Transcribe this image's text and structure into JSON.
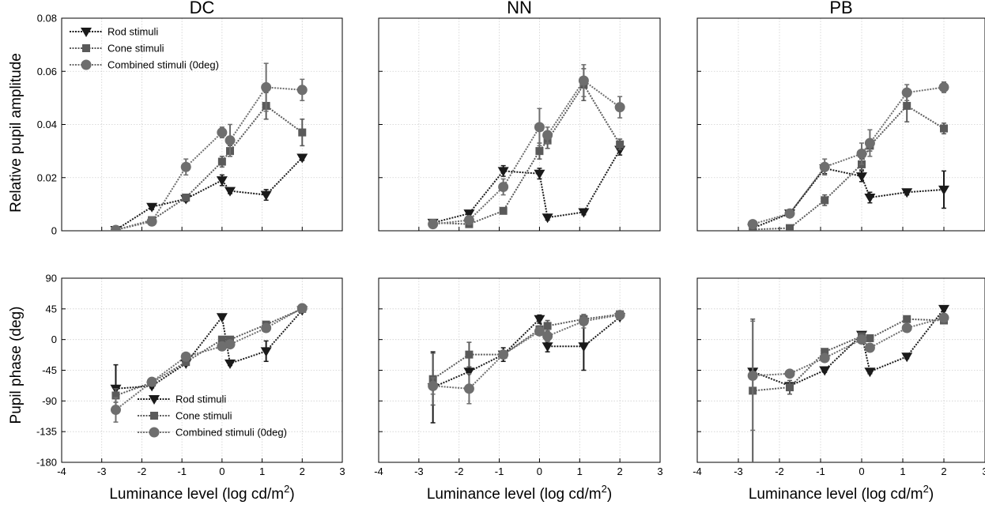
{
  "figure": {
    "ylabel_top": "Relative pupil amplitude",
    "ylabel_bottom": "Pupil phase (deg)",
    "xlabel_main": "Luminance level (log cd/m",
    "xlabel_sup": "2",
    "xlabel_end": ")"
  },
  "legend_labels": [
    "Rod stimuli",
    "Cone stimuli",
    "Combined stimuli (0deg)"
  ],
  "colors": {
    "rod": "#1a1a1a",
    "cone": "#5a5a5a",
    "comb": "#6e6e6e",
    "grid": "#cfcfcf"
  },
  "chart_data": [
    {
      "type": "line",
      "title": "DC",
      "metric": "amplitude",
      "xlim": [
        -4,
        3
      ],
      "ylim": [
        0,
        0.08
      ],
      "xticks": [
        -4,
        -3,
        -2,
        -1,
        0,
        1,
        2,
        3
      ],
      "yticks": [
        0,
        0.02,
        0.04,
        0.06,
        0.08
      ],
      "ytick_labels": [
        "0",
        "0.02",
        "0.04",
        "0.06",
        "0.08"
      ],
      "legend": "top-left",
      "grid": true,
      "series": [
        {
          "name": "Rod stimuli",
          "marker": "triangle-down",
          "x": [
            -2.65,
            -1.75,
            -0.9,
            0,
            0.2,
            1.1,
            2
          ],
          "y": [
            0.0003,
            0.009,
            0.012,
            0.019,
            0.015,
            0.0135,
            0.0275
          ],
          "err": [
            0.0005,
            0.001,
            0.001,
            0.002,
            0.001,
            0.002,
            0.001
          ]
        },
        {
          "name": "Cone stimuli",
          "marker": "square",
          "x": [
            -2.65,
            -1.75,
            -0.9,
            0,
            0.2,
            1.1,
            2
          ],
          "y": [
            0.0003,
            0.004,
            0.0125,
            0.026,
            0.03,
            0.047,
            0.037
          ],
          "err": [
            0.0005,
            0.001,
            0.001,
            0.002,
            0.002,
            0.005,
            0.005
          ]
        },
        {
          "name": "Combined stimuli (0deg)",
          "marker": "circle",
          "x": [
            -2.65,
            -1.75,
            -0.9,
            0,
            0.2,
            1.1,
            2
          ],
          "y": [
            0.0003,
            0.0035,
            0.024,
            0.037,
            0.034,
            0.054,
            0.053
          ],
          "err": [
            0.0005,
            0.001,
            0.003,
            0.002,
            0.006,
            0.009,
            0.004
          ]
        }
      ]
    },
    {
      "type": "line",
      "title": "NN",
      "metric": "amplitude",
      "xlim": [
        -4,
        3
      ],
      "ylim": [
        0,
        0.08
      ],
      "xticks": [
        -4,
        -3,
        -2,
        -1,
        0,
        1,
        2,
        3
      ],
      "grid": true,
      "series": [
        {
          "name": "Rod stimuli",
          "marker": "triangle-down",
          "x": [
            -2.65,
            -1.75,
            -0.9,
            0,
            0.2,
            1.1,
            2
          ],
          "y": [
            0.003,
            0.0065,
            0.0225,
            0.0215,
            0.005,
            0.007,
            0.0305
          ],
          "err": [
            0.001,
            0.001,
            0.002,
            0.002,
            0.001,
            0.001,
            0.002
          ]
        },
        {
          "name": "Cone stimuli",
          "marker": "square",
          "x": [
            -2.65,
            -1.75,
            -0.9,
            0,
            0.2,
            1.1,
            2
          ],
          "y": [
            0.003,
            0.0025,
            0.0075,
            0.03,
            0.034,
            0.055,
            0.0325
          ],
          "err": [
            0.001,
            0.001,
            0.001,
            0.003,
            0.003,
            0.006,
            0.002
          ]
        },
        {
          "name": "Combined stimuli (0deg)",
          "marker": "circle",
          "x": [
            -2.65,
            -1.75,
            -0.9,
            0,
            0.2,
            1.1,
            2
          ],
          "y": [
            0.0025,
            0.004,
            0.0165,
            0.039,
            0.036,
            0.0565,
            0.0465
          ],
          "err": [
            0.001,
            0.001,
            0.003,
            0.007,
            0.003,
            0.006,
            0.004
          ]
        }
      ]
    },
    {
      "type": "line",
      "title": "PB",
      "metric": "amplitude",
      "xlim": [
        -4,
        3
      ],
      "ylim": [
        0,
        0.08
      ],
      "xticks": [
        -4,
        -3,
        -2,
        -1,
        0,
        1,
        2,
        3
      ],
      "grid": true,
      "series": [
        {
          "name": "Rod stimuli",
          "marker": "triangle-down",
          "x": [
            -2.65,
            -1.75,
            -0.9,
            0,
            0.2,
            1.1,
            2
          ],
          "y": [
            0.001,
            0.0065,
            0.0235,
            0.0205,
            0.0125,
            0.0145,
            0.0155
          ],
          "err": [
            0.0005,
            0.001,
            0.002,
            0.002,
            0.002,
            0.001,
            0.007
          ]
        },
        {
          "name": "Cone stimuli",
          "marker": "square",
          "x": [
            -2.65,
            -1.75,
            -0.9,
            0,
            0.2,
            1.1,
            2
          ],
          "y": [
            0.0005,
            0.001,
            0.0115,
            0.025,
            0.032,
            0.047,
            0.0385
          ],
          "err": [
            0.0005,
            0.0005,
            0.002,
            0.002,
            0.002,
            0.006,
            0.002
          ]
        },
        {
          "name": "Combined stimuli (0deg)",
          "marker": "circle",
          "x": [
            -2.65,
            -1.75,
            -0.9,
            0,
            0.2,
            1.1,
            2
          ],
          "y": [
            0.0025,
            0.0065,
            0.024,
            0.029,
            0.033,
            0.052,
            0.054
          ],
          "err": [
            0.001,
            0.001,
            0.003,
            0.004,
            0.005,
            0.003,
            0.002
          ]
        }
      ]
    },
    {
      "type": "line",
      "title": "",
      "metric": "phase",
      "xlim": [
        -4,
        3
      ],
      "ylim": [
        -180,
        90
      ],
      "xticks": [
        -4,
        -3,
        -2,
        -1,
        0,
        1,
        2,
        3
      ],
      "yticks": [
        -180,
        -135,
        -90,
        -45,
        0,
        45,
        90
      ],
      "ytick_labels": [
        "-180",
        "-135",
        "-90",
        "-45",
        "0",
        "45",
        "90"
      ],
      "legend": "bottom-left",
      "grid": true,
      "series": [
        {
          "name": "Rod stimuli",
          "marker": "triangle-down",
          "x": [
            -2.65,
            -1.75,
            -0.9,
            0,
            0.2,
            1.1,
            2
          ],
          "y": [
            -72,
            -68,
            -35,
            33,
            -35,
            -17,
            43
          ],
          "err": [
            35,
            3,
            3,
            3,
            3,
            15,
            3
          ]
        },
        {
          "name": "Cone stimuli",
          "marker": "square",
          "x": [
            -2.65,
            -1.75,
            -0.9,
            0,
            0.2,
            1.1,
            2
          ],
          "y": [
            -82,
            -63,
            -33,
            0,
            0,
            22,
            45
          ],
          "err": [
            10,
            3,
            3,
            4,
            4,
            3,
            3
          ]
        },
        {
          "name": "Combined stimuli (0deg)",
          "marker": "circle",
          "x": [
            -2.65,
            -1.75,
            -0.9,
            0,
            0.2,
            1.1,
            2
          ],
          "y": [
            -103,
            -62,
            -25,
            -10,
            -7,
            17,
            46
          ],
          "err": [
            18,
            3,
            3,
            3,
            3,
            3,
            3
          ]
        }
      ]
    },
    {
      "type": "line",
      "title": "",
      "metric": "phase",
      "xlim": [
        -4,
        3
      ],
      "ylim": [
        -180,
        90
      ],
      "xticks": [
        -4,
        -3,
        -2,
        -1,
        0,
        1,
        2,
        3
      ],
      "grid": true,
      "series": [
        {
          "name": "Rod stimuli",
          "marker": "triangle-down",
          "x": [
            -2.65,
            -1.75,
            -0.9,
            0,
            0.2,
            1.1,
            2
          ],
          "y": [
            -70,
            -47,
            -22,
            30,
            -10,
            -10,
            33
          ],
          "err": [
            52,
            22,
            10,
            6,
            8,
            35,
            3
          ]
        },
        {
          "name": "Cone stimuli",
          "marker": "square",
          "x": [
            -2.65,
            -1.75,
            -0.9,
            0,
            0.2,
            1.1,
            2
          ],
          "y": [
            -58,
            -22,
            -22,
            15,
            20,
            30,
            37
          ],
          "err": [
            38,
            18,
            4,
            5,
            8,
            5,
            3
          ]
        },
        {
          "name": "Combined stimuli (0deg)",
          "marker": "circle",
          "x": [
            -2.65,
            -1.75,
            -0.9,
            0,
            0.2,
            1.1,
            2
          ],
          "y": [
            -68,
            -72,
            -22,
            12,
            5,
            27,
            36
          ],
          "err": [
            12,
            22,
            4,
            5,
            8,
            10,
            3
          ]
        }
      ]
    },
    {
      "type": "line",
      "title": "",
      "metric": "phase",
      "xlim": [
        -4,
        3
      ],
      "ylim": [
        -180,
        90
      ],
      "xticks": [
        -4,
        -3,
        -2,
        -1,
        0,
        1,
        2,
        3
      ],
      "grid": true,
      "series": [
        {
          "name": "Rod stimuli",
          "marker": "triangle-down",
          "x": [
            -2.65,
            -1.75,
            -0.9,
            0,
            0.2,
            1.1,
            2
          ],
          "y": [
            -47,
            -68,
            -45,
            7,
            -47,
            -25,
            45
          ],
          "err": [
            3,
            3,
            3,
            3,
            3,
            3,
            3
          ]
        },
        {
          "name": "Cone stimuli",
          "marker": "square",
          "x": [
            -2.65,
            -1.75,
            -0.9,
            0,
            0.2,
            1.1,
            2
          ],
          "y": [
            -75,
            -70,
            -18,
            5,
            2,
            30,
            28
          ],
          "err": [
            105,
            10,
            4,
            4,
            4,
            3,
            3
          ]
        },
        {
          "name": "Combined stimuli (0deg)",
          "marker": "circle",
          "x": [
            -2.65,
            -1.75,
            -0.9,
            0,
            0.2,
            1.1,
            2
          ],
          "y": [
            -53,
            -50,
            -27,
            0,
            -12,
            17,
            32
          ],
          "err": [
            80,
            3,
            3,
            3,
            3,
            3,
            3
          ]
        }
      ]
    }
  ]
}
